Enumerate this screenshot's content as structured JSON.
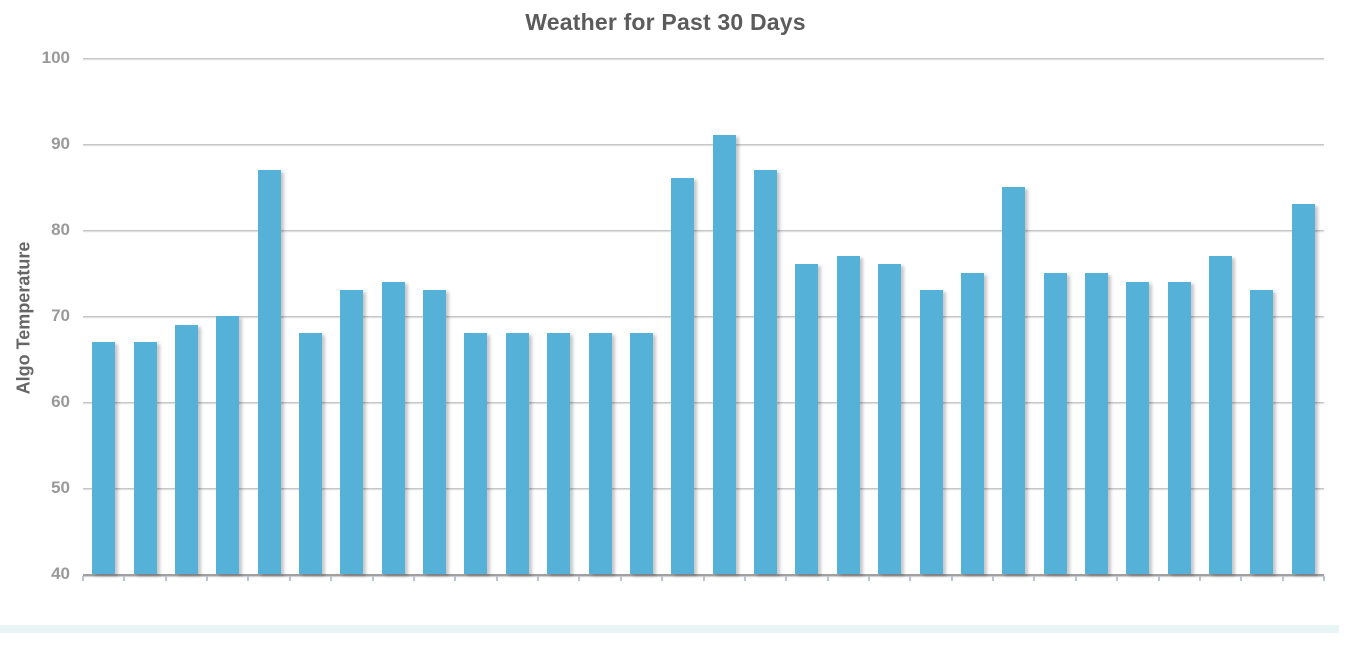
{
  "chart_data": {
    "type": "bar",
    "title": "Weather for Past 30 Days",
    "xlabel": "",
    "ylabel": "Algo Temperature",
    "ylim": [
      40,
      100
    ],
    "yticks": [
      40,
      50,
      60,
      70,
      80,
      90,
      100
    ],
    "grid": true,
    "legend_position": "none",
    "x_tick_labels": [],
    "values": [
      67,
      67,
      69,
      70,
      87,
      68,
      73,
      74,
      73,
      68,
      68,
      68,
      68,
      68,
      86,
      91,
      87,
      76,
      77,
      76,
      73,
      75,
      85,
      75,
      75,
      74,
      74,
      77,
      73,
      83
    ]
  },
  "colors": {
    "bar": "#56b1d8",
    "title_text": "#5b5b5b",
    "axis_title_text": "#666666",
    "tick_label_text": "#999999",
    "gridline": "#c6c6c6",
    "axis_line": "#a0a0a0",
    "tick_mark": "#b9c3d2",
    "bottom_strip": "#e9f4f7",
    "background": "#ffffff"
  }
}
